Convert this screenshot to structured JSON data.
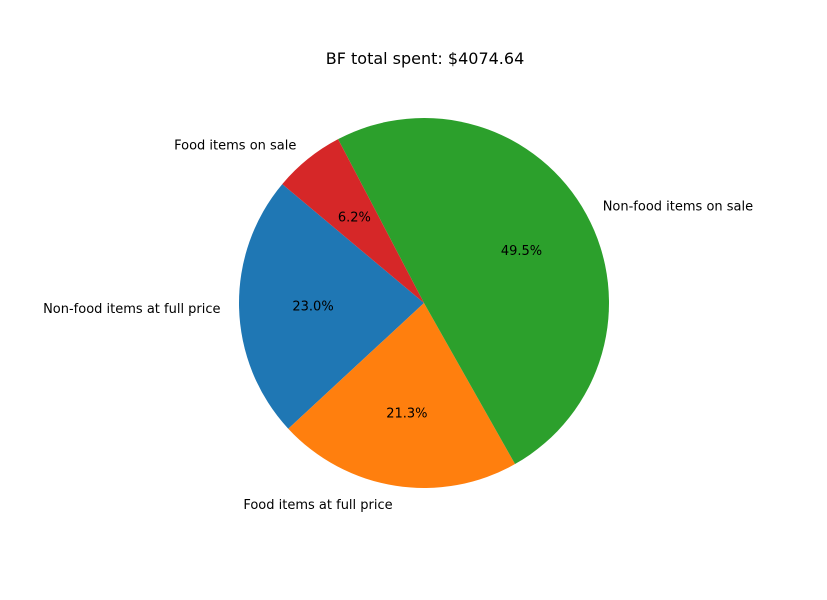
{
  "chart_data": {
    "type": "pie",
    "title": "BF total spent: $4074.64",
    "categories": [
      "Non-food items at full price",
      "Food items at full price",
      "Non-food items on sale",
      "Food items on sale"
    ],
    "values": [
      23.0,
      21.3,
      49.5,
      6.2
    ],
    "percent_labels": [
      "23.0%",
      "21.3%",
      "49.5%",
      "6.2%"
    ],
    "colors": [
      "#1f77b4",
      "#ff7f0e",
      "#2ca02c",
      "#d62728"
    ],
    "start_angle_deg": 140,
    "direction": "counterclockwise"
  }
}
